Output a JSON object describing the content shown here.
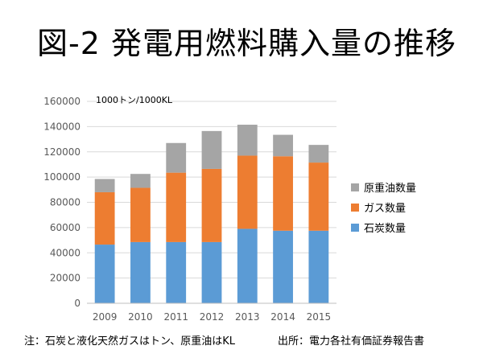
{
  "title": "図-2 発電用燃料購入量の推移",
  "footnote": "注：石炭と液化天然ガスはトン、原重油はKL",
  "source": "出所：電力各社有価証券報告書",
  "chart_data": {
    "type": "bar",
    "stacked": true,
    "unit_label": "1000トン/1000KL",
    "categories": [
      "2009",
      "2010",
      "2011",
      "2012",
      "2013",
      "2014",
      "2015"
    ],
    "series": [
      {
        "name": "石炭数量",
        "color": "#5b9bd5",
        "values": [
          46500,
          48500,
          48500,
          48500,
          59000,
          57500,
          57500
        ]
      },
      {
        "name": "ガス数量",
        "color": "#ed7d31",
        "values": [
          41500,
          43000,
          55000,
          58000,
          58000,
          59000,
          54000
        ]
      },
      {
        "name": "原重油数量",
        "color": "#a5a5a5",
        "values": [
          10500,
          11000,
          23500,
          30000,
          24500,
          17000,
          14000
        ]
      }
    ],
    "ylim": [
      0,
      160000
    ],
    "yticks": [
      0,
      20000,
      40000,
      60000,
      80000,
      100000,
      120000,
      140000,
      160000
    ],
    "legend_position": "right",
    "grid": true
  }
}
